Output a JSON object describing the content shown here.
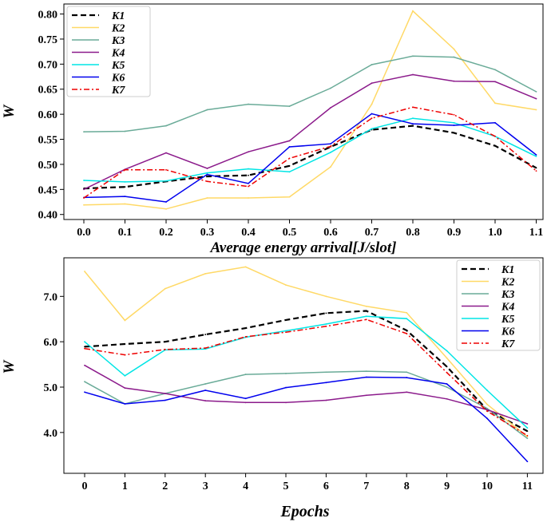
{
  "chart_data": [
    {
      "type": "line",
      "title": "",
      "xlabel": "Average energy arrival[J/slot]",
      "ylabel": "W",
      "x": [
        0.0,
        0.1,
        0.2,
        0.3,
        0.4,
        0.5,
        0.6,
        0.7,
        0.8,
        0.9,
        1.0,
        1.1
      ],
      "xtick_labels": [
        "0.0",
        "0.1",
        "0.2",
        "0.3",
        "0.4",
        "0.5",
        "0.6",
        "0.7",
        "0.8",
        "0.9",
        "1.0",
        "1.1"
      ],
      "ylim": [
        0.39,
        0.82
      ],
      "yticks": [
        0.4,
        0.45,
        0.5,
        0.55,
        0.6,
        0.65,
        0.7,
        0.75,
        0.8
      ],
      "ytick_labels": [
        "0.40",
        "0.45",
        "0.50",
        "0.55",
        "0.60",
        "0.65",
        "0.70",
        "0.75",
        "0.80"
      ],
      "legend_position": "top-left",
      "series": [
        {
          "name": "K1",
          "color": "#000000",
          "dash": "dashed",
          "values": [
            0.452,
            0.455,
            0.466,
            0.476,
            0.478,
            0.497,
            0.535,
            0.569,
            0.577,
            0.563,
            0.537,
            0.493
          ]
        },
        {
          "name": "K2",
          "color": "#ffd966",
          "dash": "solid",
          "values": [
            0.419,
            0.421,
            0.411,
            0.433,
            0.433,
            0.435,
            0.495,
            0.62,
            0.806,
            0.73,
            0.622,
            0.609
          ]
        },
        {
          "name": "K3",
          "color": "#6aab98",
          "dash": "solid",
          "values": [
            0.565,
            0.566,
            0.577,
            0.609,
            0.62,
            0.616,
            0.652,
            0.699,
            0.716,
            0.714,
            0.689,
            0.645
          ]
        },
        {
          "name": "K4",
          "color": "#8b1a8b",
          "dash": "solid",
          "values": [
            0.45,
            0.49,
            0.523,
            0.492,
            0.525,
            0.547,
            0.613,
            0.662,
            0.679,
            0.666,
            0.665,
            0.631
          ]
        },
        {
          "name": "K5",
          "color": "#00e5e5",
          "dash": "solid",
          "values": [
            0.468,
            0.465,
            0.467,
            0.483,
            0.491,
            0.485,
            0.524,
            0.571,
            0.592,
            0.583,
            0.556,
            0.516
          ]
        },
        {
          "name": "K6",
          "color": "#0000ee",
          "dash": "solid",
          "values": [
            0.434,
            0.436,
            0.425,
            0.48,
            0.462,
            0.535,
            0.541,
            0.601,
            0.581,
            0.578,
            0.583,
            0.519
          ]
        },
        {
          "name": "K7",
          "color": "#ee0000",
          "dash": "dashdot",
          "values": [
            0.433,
            0.489,
            0.489,
            0.466,
            0.456,
            0.512,
            0.536,
            0.592,
            0.614,
            0.599,
            0.556,
            0.487
          ]
        }
      ]
    },
    {
      "type": "line",
      "title": "",
      "xlabel": "Epochs",
      "ylabel": "W",
      "x": [
        0,
        1,
        2,
        3,
        4,
        5,
        6,
        7,
        8,
        9,
        10,
        11
      ],
      "xtick_labels": [
        "0",
        "1",
        "2",
        "3",
        "4",
        "5",
        "6",
        "7",
        "8",
        "9",
        "10",
        "11"
      ],
      "ylim": [
        3.1,
        7.85
      ],
      "yticks": [
        4.0,
        5.0,
        6.0,
        7.0
      ],
      "ytick_labels": [
        "4.0",
        "5.0",
        "6.0",
        "7.0"
      ],
      "legend_position": "top-right",
      "series": [
        {
          "name": "K1",
          "color": "#000000",
          "dash": "dashed",
          "values": [
            5.89,
            5.95,
            6.0,
            6.16,
            6.3,
            6.48,
            6.63,
            6.68,
            6.25,
            5.45,
            4.5,
            4.03
          ]
        },
        {
          "name": "K2",
          "color": "#ffd966",
          "dash": "solid",
          "values": [
            7.55,
            6.47,
            7.17,
            7.5,
            7.65,
            7.25,
            7.0,
            6.78,
            6.64,
            5.64,
            4.62,
            3.91
          ]
        },
        {
          "name": "K3",
          "color": "#6aab98",
          "dash": "solid",
          "values": [
            5.12,
            4.63,
            4.86,
            5.07,
            5.28,
            5.3,
            5.33,
            5.35,
            5.33,
            5.0,
            4.53,
            3.87
          ]
        },
        {
          "name": "K4",
          "color": "#8b1a8b",
          "dash": "solid",
          "values": [
            5.48,
            4.98,
            4.86,
            4.7,
            4.66,
            4.66,
            4.71,
            4.82,
            4.89,
            4.74,
            4.5,
            4.19
          ]
        },
        {
          "name": "K5",
          "color": "#00e5e5",
          "dash": "solid",
          "values": [
            6.0,
            5.25,
            5.82,
            5.84,
            6.1,
            6.24,
            6.39,
            6.56,
            6.51,
            5.8,
            4.93,
            4.1
          ]
        },
        {
          "name": "K6",
          "color": "#0000ee",
          "dash": "solid",
          "values": [
            4.89,
            4.63,
            4.71,
            4.93,
            4.75,
            4.99,
            5.1,
            5.22,
            5.21,
            5.07,
            4.31,
            3.36
          ]
        },
        {
          "name": "K7",
          "color": "#ee0000",
          "dash": "dashdot",
          "values": [
            5.85,
            5.71,
            5.83,
            5.86,
            6.11,
            6.21,
            6.34,
            6.49,
            6.18,
            5.32,
            4.47,
            3.93
          ]
        }
      ]
    }
  ]
}
